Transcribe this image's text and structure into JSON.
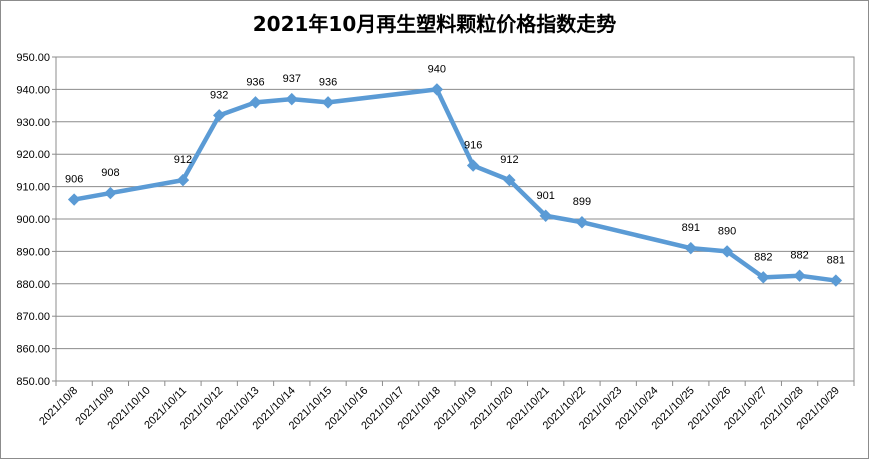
{
  "chart_data": {
    "type": "line",
    "title": "2021年10月再生塑料颗粒价格指数走势",
    "xlabel": "",
    "ylabel": "",
    "ylim": [
      850,
      950
    ],
    "y_tick_step": 10,
    "y_tick_labels": [
      "850.00",
      "860.00",
      "870.00",
      "880.00",
      "890.00",
      "900.00",
      "910.00",
      "920.00",
      "930.00",
      "940.00",
      "950.00"
    ],
    "grid": "horizontal",
    "legend": "none",
    "categories": [
      "2021/10/8",
      "2021/10/9",
      "2021/10/10",
      "2021/10/11",
      "2021/10/12",
      "2021/10/13",
      "2021/10/14",
      "2021/10/15",
      "2021/10/16",
      "2021/10/17",
      "2021/10/18",
      "2021/10/19",
      "2021/10/20",
      "2021/10/21",
      "2021/10/22",
      "2021/10/23",
      "2021/10/24",
      "2021/10/25",
      "2021/10/26",
      "2021/10/27",
      "2021/10/28",
      "2021/10/29"
    ],
    "series": [
      {
        "color": "#5b9bd5",
        "points": [
          {
            "x": "2021/10/8",
            "y": 906,
            "label": "906"
          },
          {
            "x": "2021/10/9",
            "y": 908,
            "label": "908"
          },
          {
            "x": "2021/10/11",
            "y": 912,
            "label": "912"
          },
          {
            "x": "2021/10/12",
            "y": 932,
            "label": "932"
          },
          {
            "x": "2021/10/13",
            "y": 936,
            "label": "936"
          },
          {
            "x": "2021/10/14",
            "y": 937,
            "label": "937"
          },
          {
            "x": "2021/10/15",
            "y": 936,
            "label": "936"
          },
          {
            "x": "2021/10/18",
            "y": 940,
            "label": "940"
          },
          {
            "x": "2021/10/19",
            "y": 916.5,
            "label": "916"
          },
          {
            "x": "2021/10/20",
            "y": 912,
            "label": "912"
          },
          {
            "x": "2021/10/21",
            "y": 901,
            "label": "901"
          },
          {
            "x": "2021/10/22",
            "y": 899,
            "label": "899"
          },
          {
            "x": "2021/10/25",
            "y": 891,
            "label": "891"
          },
          {
            "x": "2021/10/26",
            "y": 890,
            "label": "890"
          },
          {
            "x": "2021/10/27",
            "y": 882,
            "label": "882"
          },
          {
            "x": "2021/10/28",
            "y": 882.5,
            "label": "882"
          },
          {
            "x": "2021/10/29",
            "y": 881,
            "label": "881"
          }
        ]
      }
    ]
  }
}
